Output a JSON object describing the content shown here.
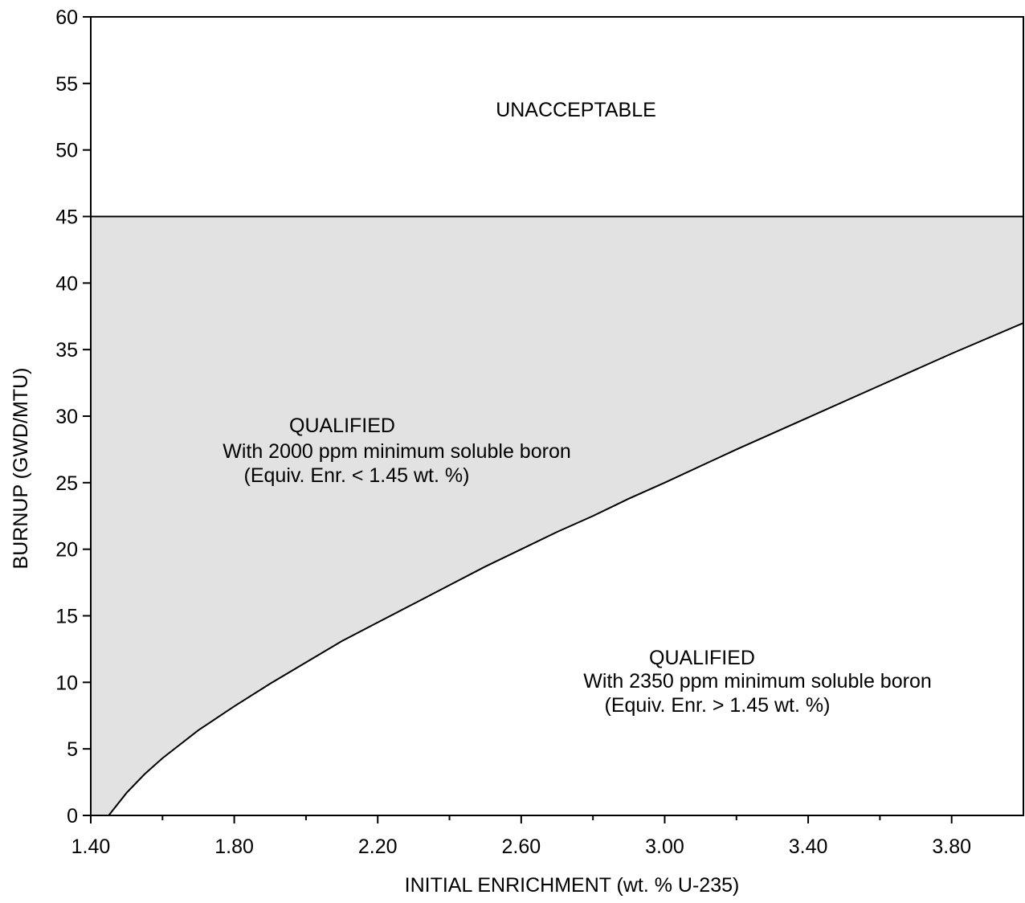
{
  "chart_data": {
    "type": "area",
    "xlabel": "INITIAL ENRICHMENT (wt. % U-235)",
    "ylabel": "BURNUP (GWD/MTU)",
    "xlim": [
      1.4,
      4.0
    ],
    "ylim": [
      0,
      60
    ],
    "x_ticks": [
      "1.40",
      "1.80",
      "2.20",
      "2.60",
      "3.00",
      "3.40",
      "3.80"
    ],
    "x_tick_values": [
      1.4,
      1.8,
      2.2,
      2.6,
      3.0,
      3.4,
      3.8
    ],
    "x_minor_tick_values": [
      1.6,
      2.0,
      2.4,
      2.8,
      3.2,
      3.6
    ],
    "y_ticks": [
      "0",
      "5",
      "10",
      "15",
      "20",
      "25",
      "30",
      "35",
      "40",
      "45",
      "50",
      "55",
      "60"
    ],
    "y_tick_values": [
      0,
      5,
      10,
      15,
      20,
      25,
      30,
      35,
      40,
      45,
      50,
      55,
      60
    ],
    "grid": false,
    "upper_limit": 45,
    "boundary_curve": {
      "x": [
        1.45,
        1.5,
        1.55,
        1.6,
        1.7,
        1.8,
        1.9,
        2.0,
        2.1,
        2.2,
        2.3,
        2.4,
        2.5,
        2.6,
        2.7,
        2.8,
        2.9,
        3.0,
        3.2,
        3.4,
        3.6,
        3.8,
        4.0
      ],
      "y": [
        0,
        1.7,
        3.1,
        4.3,
        6.4,
        8.2,
        9.9,
        11.5,
        13.1,
        14.5,
        15.9,
        17.3,
        18.7,
        20.0,
        21.3,
        22.5,
        23.8,
        25.0,
        27.5,
        29.9,
        32.3,
        34.7,
        37.0
      ]
    },
    "regions": [
      {
        "name": "UNACCEPTABLE",
        "lines": [
          "UNACCEPTABLE"
        ],
        "color": "#ffffff"
      },
      {
        "name": "QUALIFIED",
        "lines": [
          "QUALIFIED",
          "With 2000 ppm minimum soluble boron",
          "(Equiv. Enr. < 1.45 wt. %)"
        ],
        "color": "#e2e2e2"
      },
      {
        "name": "QUALIFIED",
        "lines": [
          "QUALIFIED",
          "With 2350 ppm minimum soluble boron",
          "(Equiv. Enr. > 1.45 wt. %)"
        ],
        "color": "#ffffff"
      }
    ]
  }
}
